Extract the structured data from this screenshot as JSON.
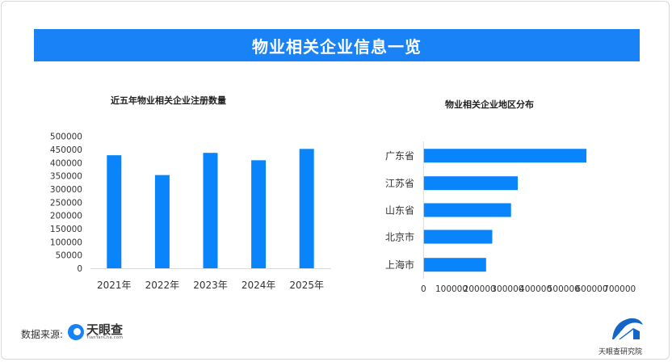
{
  "header": {
    "title": "物业相关企业信息一览"
  },
  "footer": {
    "source_label": "数据来源:",
    "logo_text": "天眼查",
    "logo_subtext": "TianYanCha.com",
    "institute_logo_text": "天眼查研究院"
  },
  "colors": {
    "bar": "#0a84fb",
    "banner": "#1a82f7"
  },
  "chart_data": [
    {
      "type": "bar",
      "title": "近五年物业相关企业注册数量",
      "categories": [
        "2021年",
        "2022年",
        "2023年",
        "2024年",
        "2025年"
      ],
      "values": [
        428000,
        353000,
        437000,
        409000,
        452000
      ],
      "ylim": [
        0,
        500000
      ],
      "yticks": [
        "0",
        "50000",
        "100000",
        "150000",
        "200000",
        "250000",
        "300000",
        "350000",
        "400000",
        "450000",
        "500000"
      ],
      "grid": false,
      "xlabel": "",
      "ylabel": ""
    },
    {
      "type": "bar",
      "orientation": "horizontal",
      "title": "物业相关企业地区分布",
      "categories": [
        "广东省",
        "江苏省",
        "山东省",
        "北京市",
        "上海市"
      ],
      "values": [
        580000,
        335000,
        311000,
        244000,
        222000
      ],
      "xlim": [
        0,
        700000
      ],
      "xticks": [
        "0",
        "100000",
        "200000",
        "300000",
        "400000",
        "500000",
        "600000",
        "700000"
      ],
      "grid": false,
      "xlabel": "",
      "ylabel": ""
    }
  ]
}
